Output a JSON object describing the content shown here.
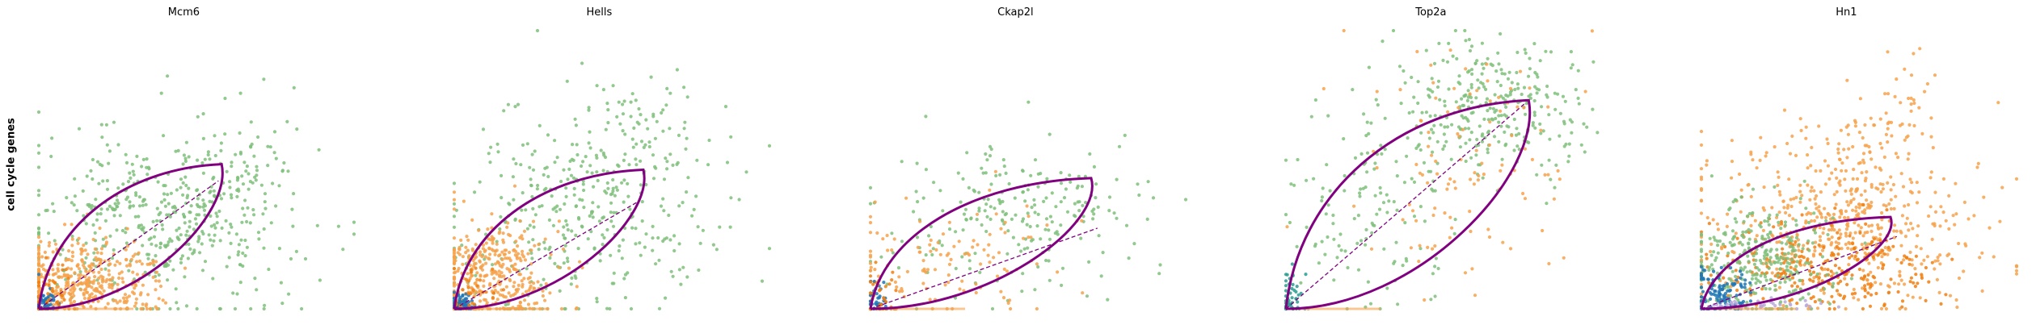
{
  "row_label": "cell cycle genes",
  "colors": {
    "green": "#7fbf7b",
    "orange": "#f6a24b",
    "dark_orange": "#f07f10",
    "blue": "#1f77b4",
    "light_blue": "#6baed6",
    "teal": "#2a9d8f",
    "lavender": "#b8a9d9",
    "fit_curve": "#800080"
  },
  "chart_data": [
    {
      "type": "scatter",
      "title": "Mcm6",
      "xlim": [
        0,
        1
      ],
      "ylim": [
        0,
        1
      ],
      "fit_curve": {
        "top": [
          0.58,
          0.52
        ],
        "dashed_end": [
          0.57,
          0.46
        ]
      },
      "clouds": [
        {
          "color": "green",
          "n": 520,
          "cx": 0.38,
          "cy": 0.3,
          "sx": 0.22,
          "sy": 0.18,
          "tail": [
            0.78,
            0.62
          ]
        },
        {
          "color": "orange",
          "n": 420,
          "cx": 0.14,
          "cy": 0.1,
          "sx": 0.12,
          "sy": 0.07
        },
        {
          "color": "blue",
          "n": 60,
          "cx": 0.02,
          "cy": 0.02,
          "sx": 0.02,
          "sy": 0.02
        },
        {
          "color": "dark_orange",
          "n": 40,
          "cx": 0.05,
          "cy": 0.05,
          "sx": 0.04,
          "sy": 0.05
        }
      ]
    },
    {
      "type": "scatter",
      "title": "Hells",
      "xlim": [
        0,
        1
      ],
      "ylim": [
        0,
        1
      ],
      "fit_curve": {
        "top": [
          0.6,
          0.5
        ],
        "dashed_end": [
          0.59,
          0.39
        ]
      },
      "clouds": [
        {
          "color": "green",
          "n": 420,
          "cx": 0.4,
          "cy": 0.35,
          "sx": 0.22,
          "sy": 0.2,
          "tail": [
            0.68,
            0.72
          ]
        },
        {
          "color": "orange",
          "n": 380,
          "cx": 0.12,
          "cy": 0.12,
          "sx": 0.1,
          "sy": 0.09
        },
        {
          "color": "blue",
          "n": 60,
          "cx": 0.02,
          "cy": 0.02,
          "sx": 0.02,
          "sy": 0.02
        },
        {
          "color": "dark_orange",
          "n": 30,
          "cx": 0.05,
          "cy": 0.05,
          "sx": 0.04,
          "sy": 0.05
        }
      ]
    },
    {
      "type": "scatter",
      "title": "Ckap2l",
      "xlim": [
        0,
        1
      ],
      "ylim": [
        0,
        1
      ],
      "fit_curve": {
        "top": [
          0.7,
          0.47
        ],
        "dashed_end": [
          0.72,
          0.29
        ]
      },
      "clouds": [
        {
          "color": "green",
          "n": 230,
          "cx": 0.45,
          "cy": 0.32,
          "sx": 0.22,
          "sy": 0.14,
          "tail": [
            0.75,
            0.45
          ]
        },
        {
          "color": "orange",
          "n": 120,
          "cx": 0.3,
          "cy": 0.18,
          "sx": 0.22,
          "sy": 0.12
        },
        {
          "color": "blue",
          "n": 40,
          "cx": 0.02,
          "cy": 0.03,
          "sx": 0.02,
          "sy": 0.03
        },
        {
          "color": "dark_orange",
          "n": 40,
          "cx": 0.03,
          "cy": 0.05,
          "sx": 0.03,
          "sy": 0.06
        }
      ]
    },
    {
      "type": "scatter",
      "title": "Top2a",
      "xlim": [
        0,
        1
      ],
      "ylim": [
        0,
        1
      ],
      "fit_curve": {
        "top": [
          0.77,
          0.75
        ],
        "dashed_end": [
          0.76,
          0.74
        ]
      },
      "clouds": [
        {
          "color": "green",
          "n": 320,
          "cx": 0.62,
          "cy": 0.72,
          "sx": 0.16,
          "sy": 0.12
        },
        {
          "color": "green",
          "n": 120,
          "cx": 0.25,
          "cy": 0.35,
          "sx": 0.12,
          "sy": 0.18
        },
        {
          "color": "orange",
          "n": 110,
          "cx": 0.55,
          "cy": 0.5,
          "sx": 0.18,
          "sy": 0.2
        },
        {
          "color": "teal",
          "n": 50,
          "cx": 0.02,
          "cy": 0.04,
          "sx": 0.02,
          "sy": 0.05
        }
      ]
    },
    {
      "type": "scatter",
      "title": "Hn1",
      "xlim": [
        0,
        1
      ],
      "ylim": [
        0,
        1
      ],
      "fit_curve": {
        "top": [
          0.6,
          0.33
        ],
        "dashed_end": [
          0.62,
          0.26
        ]
      },
      "clouds": [
        {
          "color": "orange",
          "n": 650,
          "cx": 0.45,
          "cy": 0.3,
          "sx": 0.22,
          "sy": 0.15,
          "tail": [
            0.65,
            0.78
          ]
        },
        {
          "color": "dark_orange",
          "n": 250,
          "cx": 0.4,
          "cy": 0.15,
          "sx": 0.18,
          "sy": 0.08
        },
        {
          "color": "green",
          "n": 300,
          "cx": 0.18,
          "cy": 0.18,
          "sx": 0.12,
          "sy": 0.11
        },
        {
          "color": "blue",
          "n": 120,
          "cx": 0.06,
          "cy": 0.06,
          "sx": 0.05,
          "sy": 0.05
        },
        {
          "color": "lavender",
          "n": 40,
          "cx": 0.18,
          "cy": 0.01,
          "sx": 0.1,
          "sy": 0.01
        }
      ]
    }
  ]
}
